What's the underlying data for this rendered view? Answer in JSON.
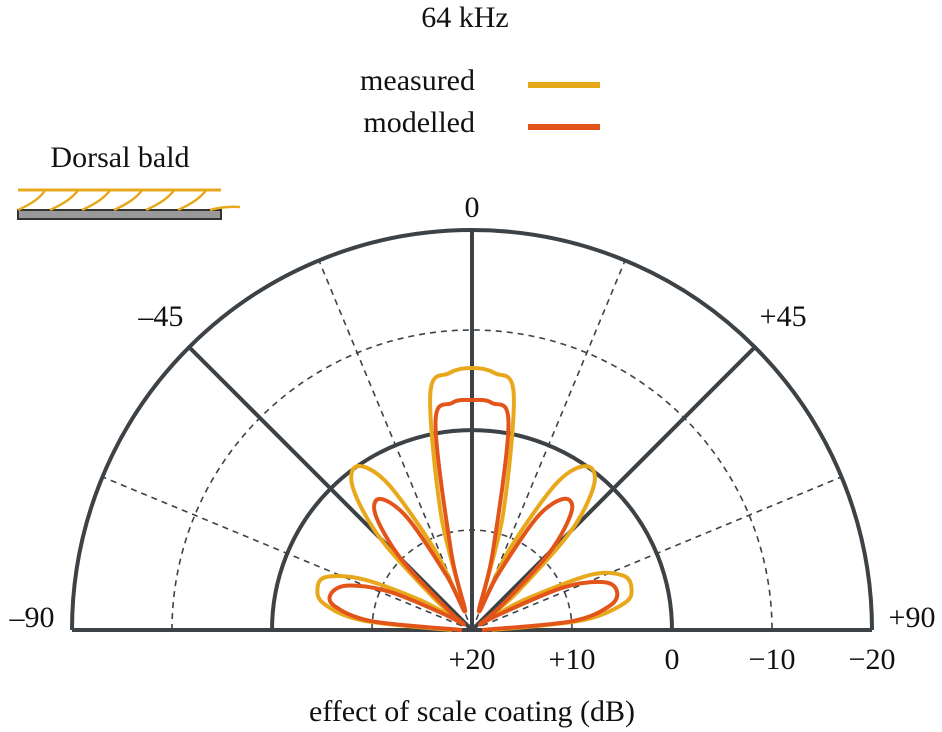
{
  "chart_data": {
    "type": "polar",
    "title": "64 kHz",
    "annotation": "Dorsal bald",
    "rlabel": "effect of scale coating (dB)",
    "theta": [
      -90,
      -85,
      -80,
      -75,
      -70,
      -65,
      -60,
      -55,
      -50,
      -45,
      -40,
      -35,
      -30,
      -25,
      -20,
      -15,
      -10,
      -5,
      0,
      5,
      10,
      15,
      20,
      25,
      30,
      35,
      40,
      45,
      50,
      55,
      60,
      65,
      70,
      75,
      80,
      85,
      90
    ],
    "series": [
      {
        "name": "measured",
        "color": "#e8a81c",
        "values": [
          18,
          9,
          5,
          4,
          4.5,
          8,
          14,
          18,
          15,
          7,
          1.5,
          0,
          3,
          11,
          17,
          8,
          -4,
          -5.8,
          -6.2,
          -5.8,
          -4,
          8,
          17,
          11,
          3,
          0,
          1,
          6,
          14,
          18,
          14,
          7,
          4,
          3.5,
          4.5,
          9,
          18
        ]
      },
      {
        "name": "modelled",
        "color": "#e2541a",
        "values": [
          19,
          10,
          6,
          5.5,
          7,
          11,
          17,
          19,
          17,
          10,
          5,
          4,
          7,
          14,
          18,
          12,
          -1,
          -2.8,
          -3,
          -2.8,
          -1,
          12,
          18,
          14,
          7,
          4,
          4.5,
          9,
          16,
          19,
          17,
          10,
          6,
          5,
          6,
          10,
          19
        ]
      }
    ],
    "thetalim": [
      -90,
      90
    ],
    "thetaticks": [
      {
        "value": -90,
        "label": "–90"
      },
      {
        "value": -45,
        "label": "–45"
      },
      0,
      {
        "value": 45,
        "label": "+45"
      },
      {
        "value": 90,
        "label": "+90"
      }
    ],
    "minor_thetaticks": [
      -67.5,
      -22.5,
      22.5,
      67.5
    ],
    "rlim": [
      20,
      -20
    ],
    "rticks": [
      {
        "value": 20,
        "label": "+20"
      },
      {
        "value": 10,
        "label": "+10"
      },
      0,
      {
        "value": -10,
        "label": "−10"
      },
      {
        "value": -20,
        "label": "−20"
      }
    ]
  }
}
